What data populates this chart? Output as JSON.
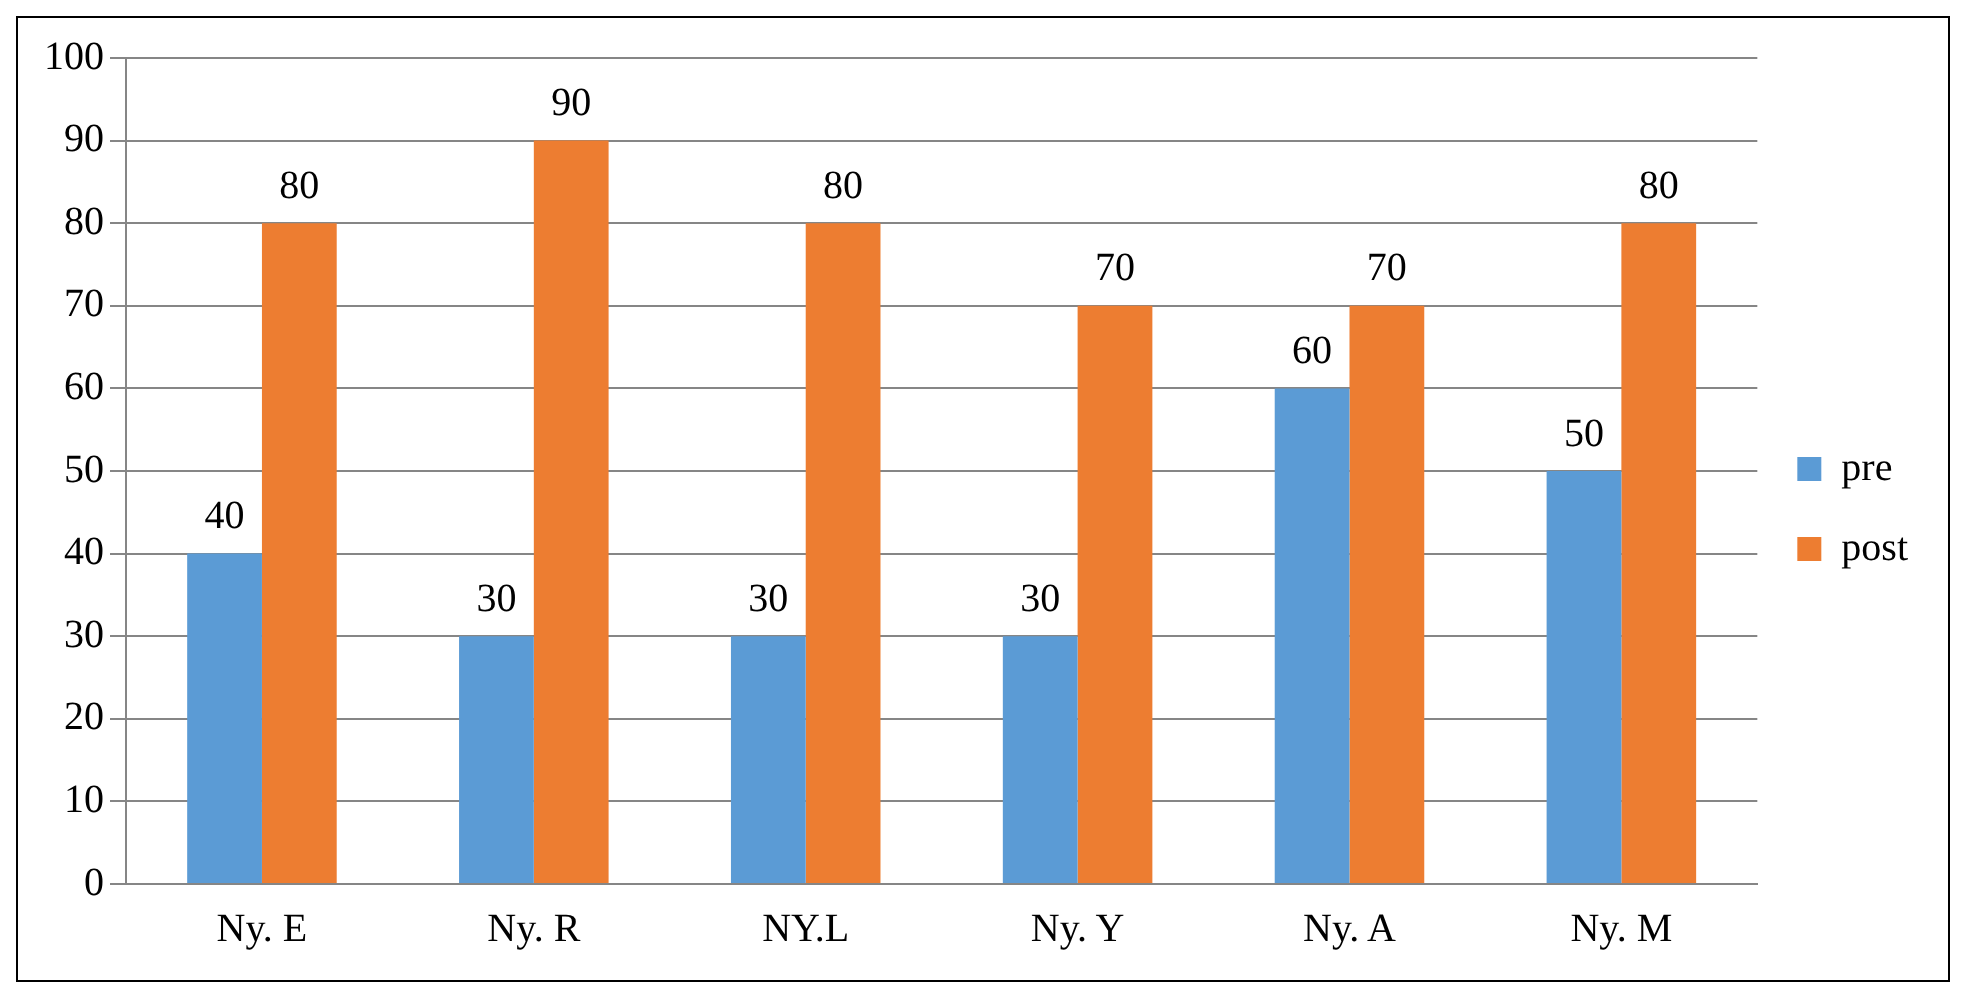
{
  "chart_data": {
    "type": "bar",
    "categories": [
      "Ny. E",
      "Ny. R",
      "NY.L",
      "Ny. Y",
      "Ny. A",
      "Ny. M"
    ],
    "series": [
      {
        "name": "pre",
        "color": "#5b9bd5",
        "values": [
          40,
          30,
          30,
          30,
          60,
          50
        ]
      },
      {
        "name": "post",
        "color": "#ed7d31",
        "values": [
          80,
          90,
          80,
          70,
          70,
          80
        ]
      }
    ],
    "ylim": [
      0,
      100
    ],
    "yticks": [
      0,
      10,
      20,
      30,
      40,
      50,
      60,
      70,
      80,
      90,
      100
    ],
    "grid": "y",
    "legend": "right",
    "data_labels": true
  }
}
